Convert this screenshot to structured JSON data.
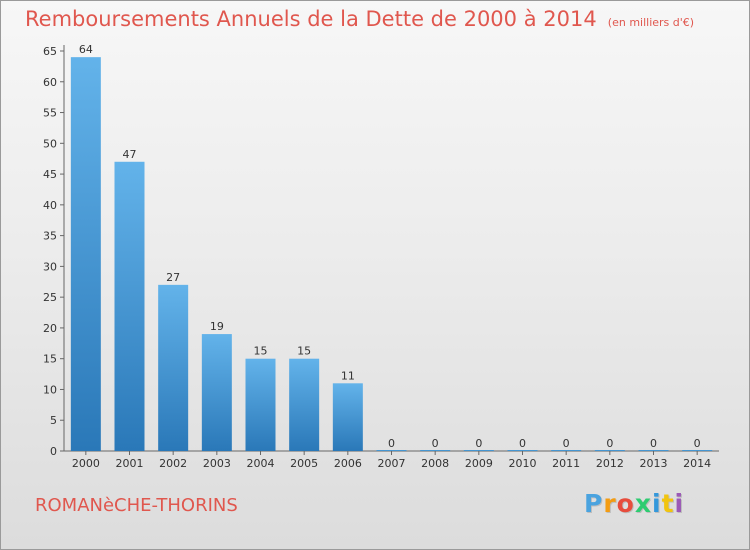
{
  "title": "Remboursements Annuels de la Dette de 2000 à 2014",
  "subtitle": "(en milliers d'€)",
  "city": "ROMANèCHE-THORINS",
  "logo": {
    "letters": [
      "P",
      "r",
      "o",
      "x",
      "i",
      "t",
      "i"
    ],
    "colors": [
      "#4aa3df",
      "#f39c12",
      "#e74c3c",
      "#2ecc71",
      "#3498db",
      "#f1c40f",
      "#9b59b6"
    ]
  },
  "colors": {
    "accent": "#e0574e",
    "bar_top": "#63b3ea",
    "bar_bottom": "#2a78b8",
    "axis_text": "#333333"
  },
  "chart_data": {
    "type": "bar",
    "categories": [
      "2000",
      "2001",
      "2002",
      "2003",
      "2004",
      "2005",
      "2006",
      "2007",
      "2008",
      "2009",
      "2010",
      "2011",
      "2012",
      "2013",
      "2014"
    ],
    "values": [
      64,
      47,
      27,
      19,
      15,
      15,
      11,
      0,
      0,
      0,
      0,
      0,
      0,
      0,
      0
    ],
    "ylim": [
      0,
      65
    ],
    "yticks": [
      0,
      5,
      10,
      15,
      20,
      25,
      30,
      35,
      40,
      45,
      50,
      55,
      60,
      65
    ],
    "grid": false,
    "legend": "none",
    "data_labels": true
  }
}
